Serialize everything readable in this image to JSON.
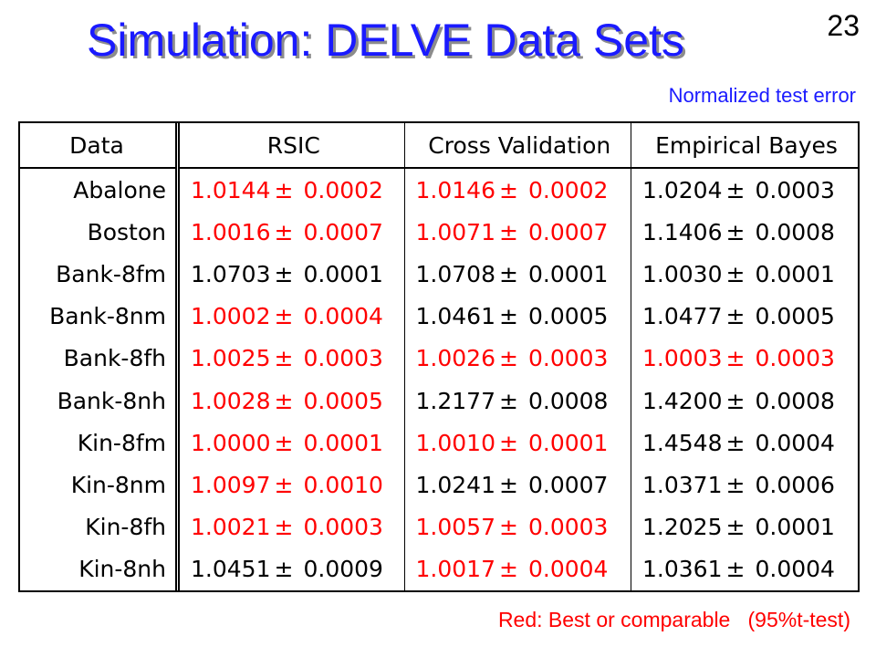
{
  "title": "Simulation: DELVE Data Sets",
  "page_number": "23",
  "subtitle": "Normalized test error",
  "colors": {
    "title": "#1a1aff",
    "highlight": "#ff0000",
    "text": "#000000"
  },
  "table": {
    "headers": [
      "Data",
      "RSIC",
      "Cross Validation",
      "Empirical Bayes"
    ],
    "pm_symbol": "±",
    "rows": [
      {
        "name": "Abalone",
        "cells": [
          {
            "v": "1.0144",
            "e": "0.0002",
            "red": true
          },
          {
            "v": "1.0146",
            "e": "0.0002",
            "red": true
          },
          {
            "v": "1.0204",
            "e": "0.0003",
            "red": false
          }
        ]
      },
      {
        "name": "Boston",
        "cells": [
          {
            "v": "1.0016",
            "e": "0.0007",
            "red": true
          },
          {
            "v": "1.0071",
            "e": "0.0007",
            "red": true
          },
          {
            "v": "1.1406",
            "e": "0.0008",
            "red": false
          }
        ]
      },
      {
        "name": "Bank-8fm",
        "cells": [
          {
            "v": "1.0703",
            "e": "0.0001",
            "red": false
          },
          {
            "v": "1.0708",
            "e": "0.0001",
            "red": false
          },
          {
            "v": "1.0030",
            "e": "0.0001",
            "red": false
          }
        ]
      },
      {
        "name": "Bank-8nm",
        "cells": [
          {
            "v": "1.0002",
            "e": "0.0004",
            "red": true
          },
          {
            "v": "1.0461",
            "e": "0.0005",
            "red": false
          },
          {
            "v": "1.0477",
            "e": "0.0005",
            "red": false
          }
        ]
      },
      {
        "name": "Bank-8fh",
        "cells": [
          {
            "v": "1.0025",
            "e": "0.0003",
            "red": true
          },
          {
            "v": "1.0026",
            "e": "0.0003",
            "red": true
          },
          {
            "v": "1.0003",
            "e": "0.0003",
            "red": true
          }
        ]
      },
      {
        "name": "Bank-8nh",
        "cells": [
          {
            "v": "1.0028",
            "e": "0.0005",
            "red": true
          },
          {
            "v": "1.2177",
            "e": "0.0008",
            "red": false
          },
          {
            "v": "1.4200",
            "e": "0.0008",
            "red": false
          }
        ]
      },
      {
        "name": "Kin-8fm",
        "cells": [
          {
            "v": "1.0000",
            "e": "0.0001",
            "red": true
          },
          {
            "v": "1.0010",
            "e": "0.0001",
            "red": true
          },
          {
            "v": "1.4548",
            "e": "0.0004",
            "red": false
          }
        ]
      },
      {
        "name": "Kin-8nm",
        "cells": [
          {
            "v": "1.0097",
            "e": "0.0010",
            "red": true
          },
          {
            "v": "1.0241",
            "e": "0.0007",
            "red": false
          },
          {
            "v": "1.0371",
            "e": "0.0006",
            "red": false
          }
        ]
      },
      {
        "name": "Kin-8fh",
        "cells": [
          {
            "v": "1.0021",
            "e": "0.0003",
            "red": true
          },
          {
            "v": "1.0057",
            "e": "0.0003",
            "red": true
          },
          {
            "v": "1.2025",
            "e": "0.0001",
            "red": false
          }
        ]
      },
      {
        "name": "Kin-8nh",
        "cells": [
          {
            "v": "1.0451",
            "e": "0.0009",
            "red": false
          },
          {
            "v": "1.0017",
            "e": "0.0004",
            "red": true
          },
          {
            "v": "1.0361",
            "e": "0.0004",
            "red": false
          }
        ]
      }
    ]
  },
  "legend": "Red: Best or comparable   (95%t-test)"
}
